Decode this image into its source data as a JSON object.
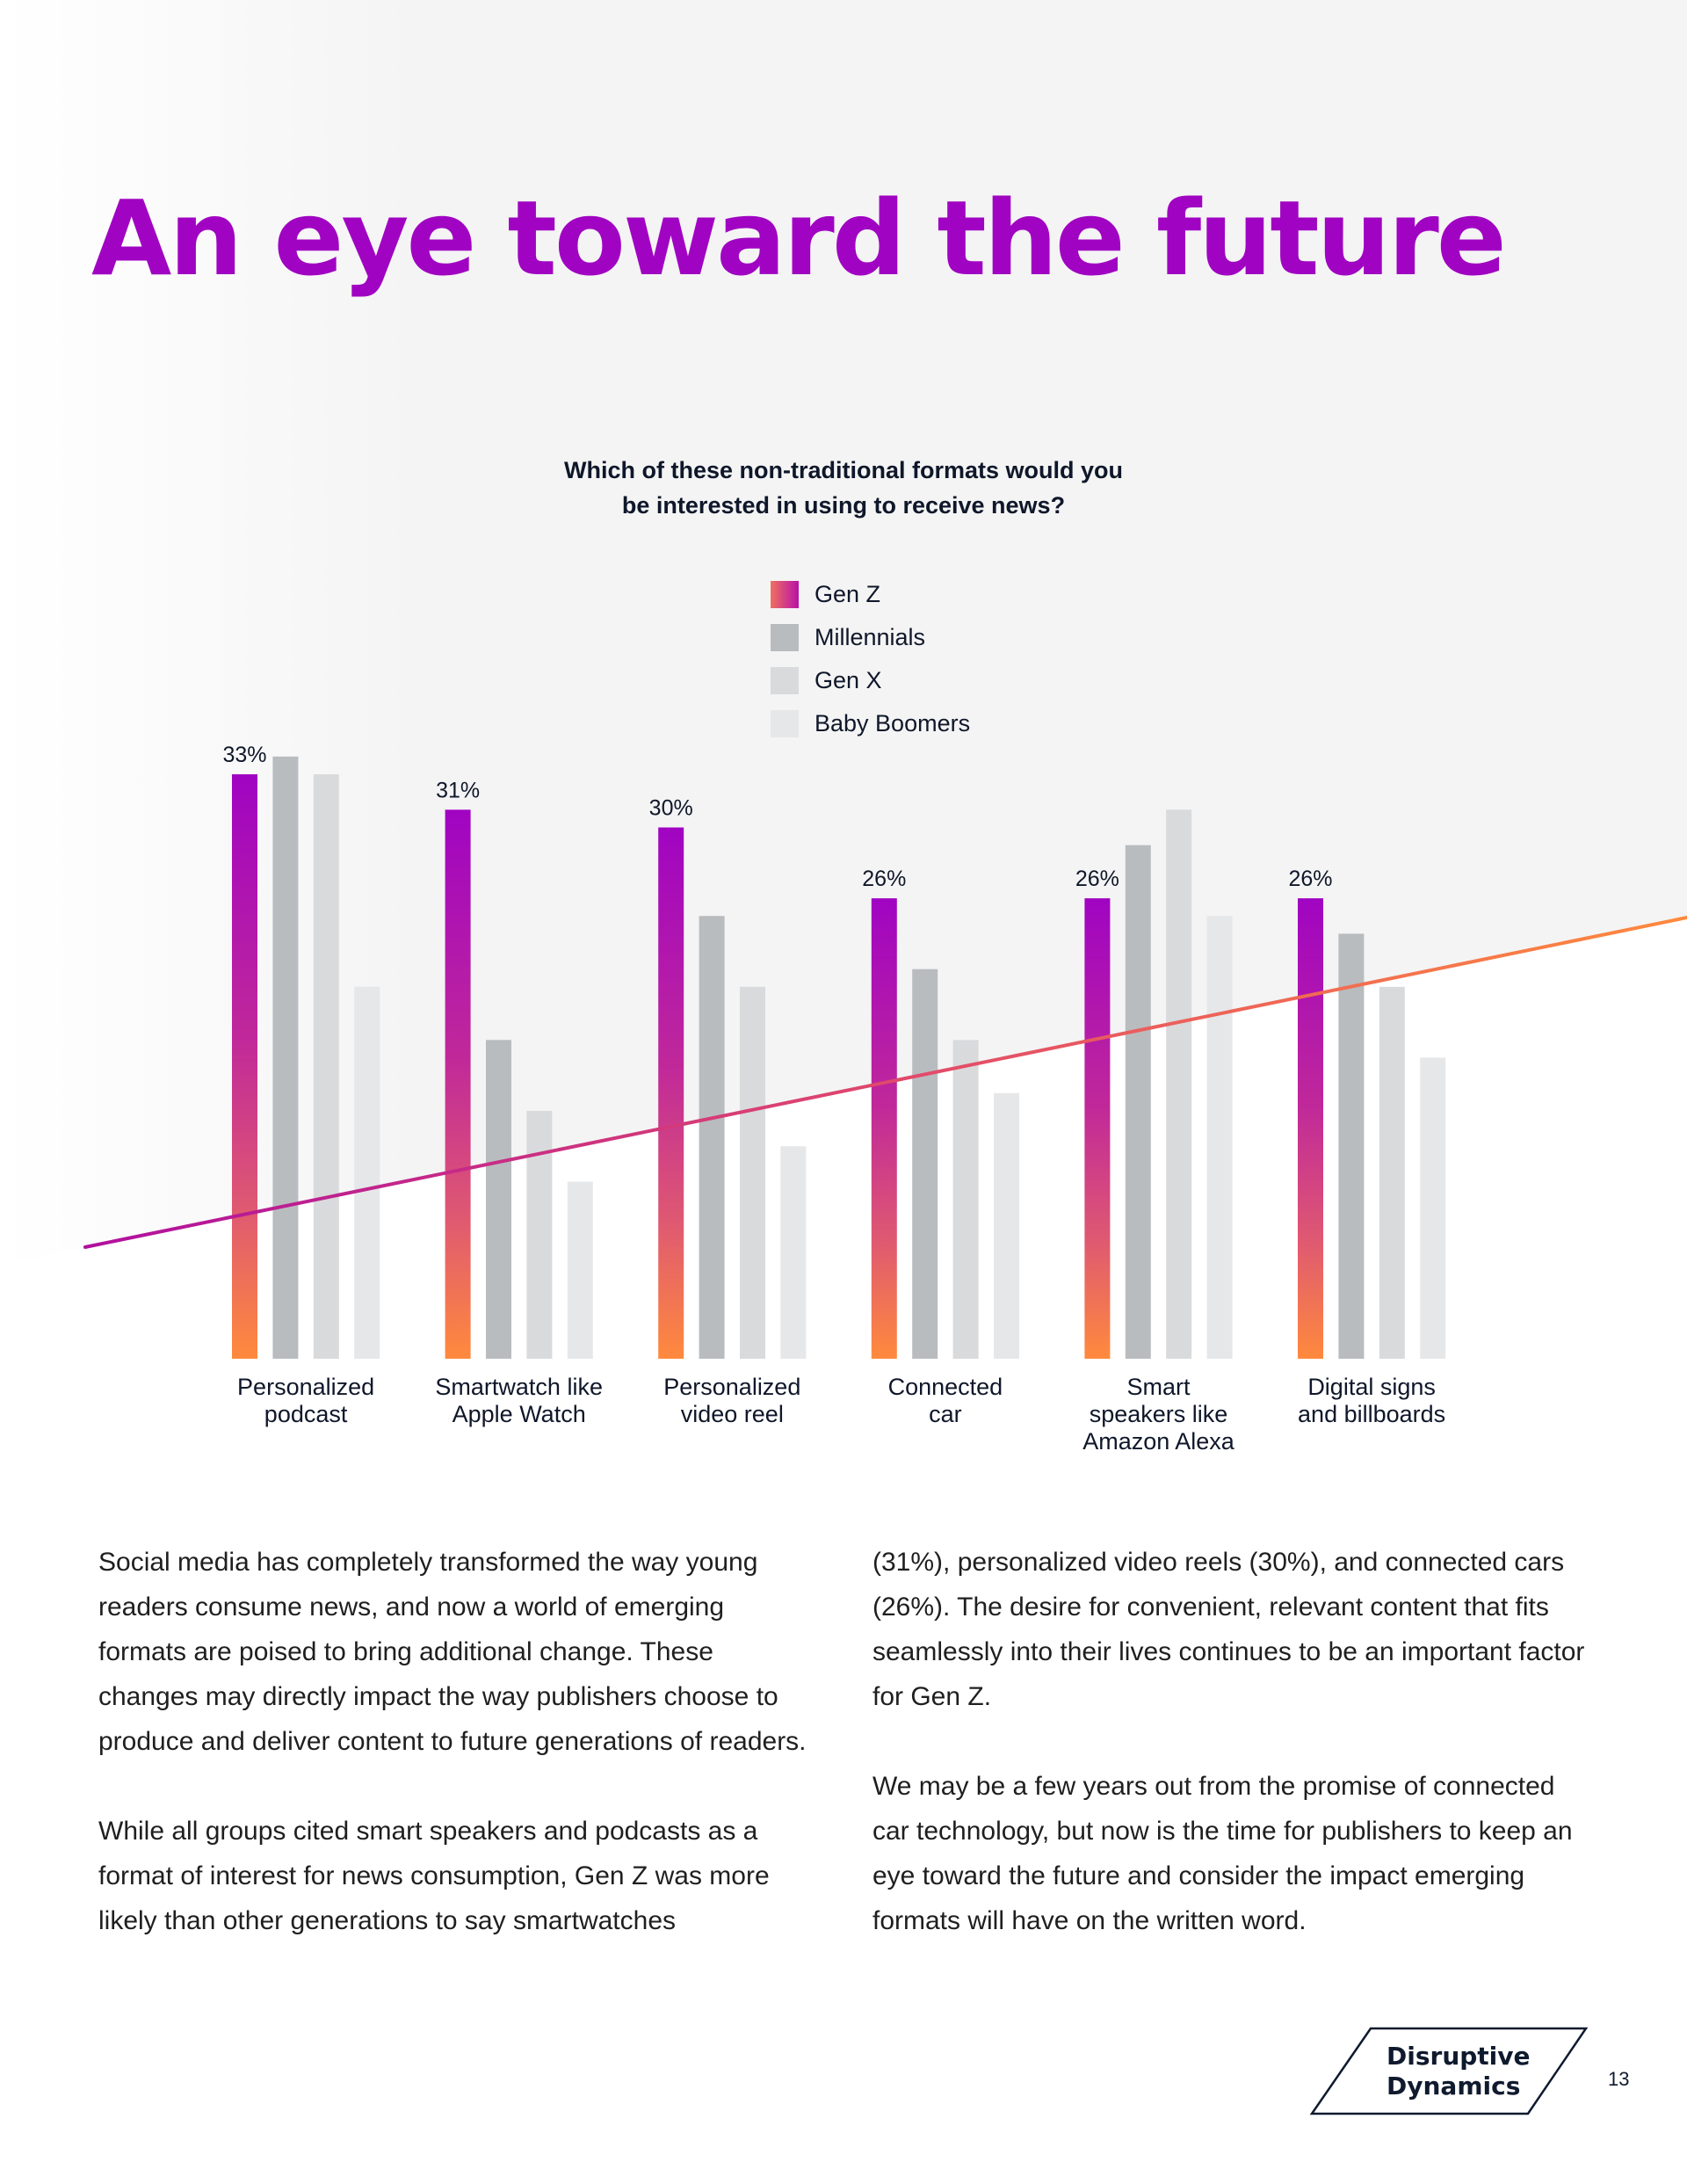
{
  "page": {
    "title": "An eye toward the future",
    "page_number": "13",
    "logo": {
      "line1": "Disruptive",
      "line2": "Dynamics"
    },
    "colors": {
      "title": "#a004c2",
      "genz_gradient": [
        "#a004c2",
        "#ff8a3d"
      ],
      "line_gradient": [
        "#b0109e",
        "#ff8a3d"
      ],
      "millennials": "#b9bcbf",
      "genx": "#d9dadc",
      "boomers": "#e6e7e9",
      "text": "#0f172a",
      "background_shade": "#f4f4f4"
    }
  },
  "body": {
    "column1": [
      "Social media has completely transformed the way young readers consume news, and now a world of emerging formats are poised to bring additional change. These changes may directly impact the way publishers choose to produce and deliver content to future generations of readers.",
      "While all groups cited smart speakers and podcasts as a format of interest for news consumption, Gen Z was more likely than other generations to say smartwatches"
    ],
    "column2": [
      "(31%), personalized video reels (30%), and connected cars (26%). The desire for convenient, relevant content that fits seamlessly into their lives continues to be an important factor for Gen Z.",
      "We may be a few years out from the promise of connected car technology, but now is the time for publishers to keep an eye toward the future and consider the impact emerging formats will have on the written word."
    ]
  },
  "chart_data": {
    "type": "bar",
    "title": "Which of these non-traditional formats would you be interested in using to receive news?",
    "title_lines": [
      "Which of these non-traditional formats would you",
      "be interested in using to receive news?"
    ],
    "xlabel": "",
    "ylabel": "",
    "ylim": [
      0,
      35
    ],
    "grid": false,
    "legend_position": "top-center",
    "categories": [
      "Personalized podcast",
      "Smartwatch like Apple Watch",
      "Personalized video reel",
      "Connected car",
      "Smart speakers like Amazon Alexa",
      "Digital signs and billboards"
    ],
    "category_lines": [
      [
        "Personalized",
        "podcast"
      ],
      [
        "Smartwatch like",
        "Apple Watch"
      ],
      [
        "Personalized",
        "video reel"
      ],
      [
        "Connected",
        "car"
      ],
      [
        "Smart",
        "speakers like",
        "Amazon Alexa"
      ],
      [
        "Digital signs",
        "and billboards"
      ]
    ],
    "series": [
      {
        "name": "Gen Z",
        "values": [
          33,
          31,
          30,
          26,
          26,
          26
        ],
        "labels": [
          "33%",
          "31%",
          "30%",
          "26%",
          "26%",
          "26%"
        ]
      },
      {
        "name": "Millennials",
        "values": [
          34,
          18,
          25,
          22,
          29,
          24
        ]
      },
      {
        "name": "Gen X",
        "values": [
          33,
          14,
          21,
          18,
          31,
          21
        ]
      },
      {
        "name": "Baby Boomers",
        "values": [
          21,
          10,
          12,
          15,
          25,
          17
        ]
      }
    ]
  }
}
